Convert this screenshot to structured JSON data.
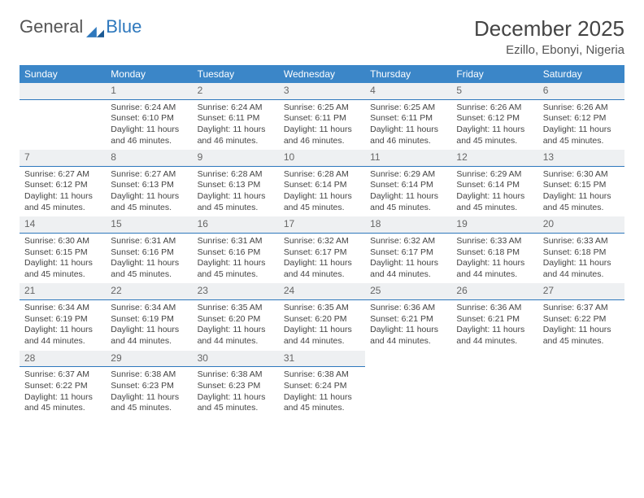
{
  "logo": {
    "part1": "General",
    "part2": "Blue"
  },
  "title": "December 2025",
  "location": "Ezillo, Ebonyi, Nigeria",
  "colors": {
    "header_bg": "#3b86c8",
    "accent": "#2e78bd",
    "daybar_bg": "#eef0f2"
  },
  "weekdays": [
    "Sunday",
    "Monday",
    "Tuesday",
    "Wednesday",
    "Thursday",
    "Friday",
    "Saturday"
  ],
  "weeks": [
    [
      null,
      {
        "n": "1",
        "sunrise": "Sunrise: 6:24 AM",
        "sunset": "Sunset: 6:10 PM",
        "day1": "Daylight: 11 hours",
        "day2": "and 46 minutes."
      },
      {
        "n": "2",
        "sunrise": "Sunrise: 6:24 AM",
        "sunset": "Sunset: 6:11 PM",
        "day1": "Daylight: 11 hours",
        "day2": "and 46 minutes."
      },
      {
        "n": "3",
        "sunrise": "Sunrise: 6:25 AM",
        "sunset": "Sunset: 6:11 PM",
        "day1": "Daylight: 11 hours",
        "day2": "and 46 minutes."
      },
      {
        "n": "4",
        "sunrise": "Sunrise: 6:25 AM",
        "sunset": "Sunset: 6:11 PM",
        "day1": "Daylight: 11 hours",
        "day2": "and 46 minutes."
      },
      {
        "n": "5",
        "sunrise": "Sunrise: 6:26 AM",
        "sunset": "Sunset: 6:12 PM",
        "day1": "Daylight: 11 hours",
        "day2": "and 45 minutes."
      },
      {
        "n": "6",
        "sunrise": "Sunrise: 6:26 AM",
        "sunset": "Sunset: 6:12 PM",
        "day1": "Daylight: 11 hours",
        "day2": "and 45 minutes."
      }
    ],
    [
      {
        "n": "7",
        "sunrise": "Sunrise: 6:27 AM",
        "sunset": "Sunset: 6:12 PM",
        "day1": "Daylight: 11 hours",
        "day2": "and 45 minutes."
      },
      {
        "n": "8",
        "sunrise": "Sunrise: 6:27 AM",
        "sunset": "Sunset: 6:13 PM",
        "day1": "Daylight: 11 hours",
        "day2": "and 45 minutes."
      },
      {
        "n": "9",
        "sunrise": "Sunrise: 6:28 AM",
        "sunset": "Sunset: 6:13 PM",
        "day1": "Daylight: 11 hours",
        "day2": "and 45 minutes."
      },
      {
        "n": "10",
        "sunrise": "Sunrise: 6:28 AM",
        "sunset": "Sunset: 6:14 PM",
        "day1": "Daylight: 11 hours",
        "day2": "and 45 minutes."
      },
      {
        "n": "11",
        "sunrise": "Sunrise: 6:29 AM",
        "sunset": "Sunset: 6:14 PM",
        "day1": "Daylight: 11 hours",
        "day2": "and 45 minutes."
      },
      {
        "n": "12",
        "sunrise": "Sunrise: 6:29 AM",
        "sunset": "Sunset: 6:14 PM",
        "day1": "Daylight: 11 hours",
        "day2": "and 45 minutes."
      },
      {
        "n": "13",
        "sunrise": "Sunrise: 6:30 AM",
        "sunset": "Sunset: 6:15 PM",
        "day1": "Daylight: 11 hours",
        "day2": "and 45 minutes."
      }
    ],
    [
      {
        "n": "14",
        "sunrise": "Sunrise: 6:30 AM",
        "sunset": "Sunset: 6:15 PM",
        "day1": "Daylight: 11 hours",
        "day2": "and 45 minutes."
      },
      {
        "n": "15",
        "sunrise": "Sunrise: 6:31 AM",
        "sunset": "Sunset: 6:16 PM",
        "day1": "Daylight: 11 hours",
        "day2": "and 45 minutes."
      },
      {
        "n": "16",
        "sunrise": "Sunrise: 6:31 AM",
        "sunset": "Sunset: 6:16 PM",
        "day1": "Daylight: 11 hours",
        "day2": "and 45 minutes."
      },
      {
        "n": "17",
        "sunrise": "Sunrise: 6:32 AM",
        "sunset": "Sunset: 6:17 PM",
        "day1": "Daylight: 11 hours",
        "day2": "and 44 minutes."
      },
      {
        "n": "18",
        "sunrise": "Sunrise: 6:32 AM",
        "sunset": "Sunset: 6:17 PM",
        "day1": "Daylight: 11 hours",
        "day2": "and 44 minutes."
      },
      {
        "n": "19",
        "sunrise": "Sunrise: 6:33 AM",
        "sunset": "Sunset: 6:18 PM",
        "day1": "Daylight: 11 hours",
        "day2": "and 44 minutes."
      },
      {
        "n": "20",
        "sunrise": "Sunrise: 6:33 AM",
        "sunset": "Sunset: 6:18 PM",
        "day1": "Daylight: 11 hours",
        "day2": "and 44 minutes."
      }
    ],
    [
      {
        "n": "21",
        "sunrise": "Sunrise: 6:34 AM",
        "sunset": "Sunset: 6:19 PM",
        "day1": "Daylight: 11 hours",
        "day2": "and 44 minutes."
      },
      {
        "n": "22",
        "sunrise": "Sunrise: 6:34 AM",
        "sunset": "Sunset: 6:19 PM",
        "day1": "Daylight: 11 hours",
        "day2": "and 44 minutes."
      },
      {
        "n": "23",
        "sunrise": "Sunrise: 6:35 AM",
        "sunset": "Sunset: 6:20 PM",
        "day1": "Daylight: 11 hours",
        "day2": "and 44 minutes."
      },
      {
        "n": "24",
        "sunrise": "Sunrise: 6:35 AM",
        "sunset": "Sunset: 6:20 PM",
        "day1": "Daylight: 11 hours",
        "day2": "and 44 minutes."
      },
      {
        "n": "25",
        "sunrise": "Sunrise: 6:36 AM",
        "sunset": "Sunset: 6:21 PM",
        "day1": "Daylight: 11 hours",
        "day2": "and 44 minutes."
      },
      {
        "n": "26",
        "sunrise": "Sunrise: 6:36 AM",
        "sunset": "Sunset: 6:21 PM",
        "day1": "Daylight: 11 hours",
        "day2": "and 44 minutes."
      },
      {
        "n": "27",
        "sunrise": "Sunrise: 6:37 AM",
        "sunset": "Sunset: 6:22 PM",
        "day1": "Daylight: 11 hours",
        "day2": "and 45 minutes."
      }
    ],
    [
      {
        "n": "28",
        "sunrise": "Sunrise: 6:37 AM",
        "sunset": "Sunset: 6:22 PM",
        "day1": "Daylight: 11 hours",
        "day2": "and 45 minutes."
      },
      {
        "n": "29",
        "sunrise": "Sunrise: 6:38 AM",
        "sunset": "Sunset: 6:23 PM",
        "day1": "Daylight: 11 hours",
        "day2": "and 45 minutes."
      },
      {
        "n": "30",
        "sunrise": "Sunrise: 6:38 AM",
        "sunset": "Sunset: 6:23 PM",
        "day1": "Daylight: 11 hours",
        "day2": "and 45 minutes."
      },
      {
        "n": "31",
        "sunrise": "Sunrise: 6:38 AM",
        "sunset": "Sunset: 6:24 PM",
        "day1": "Daylight: 11 hours",
        "day2": "and 45 minutes."
      },
      null,
      null,
      null
    ]
  ]
}
